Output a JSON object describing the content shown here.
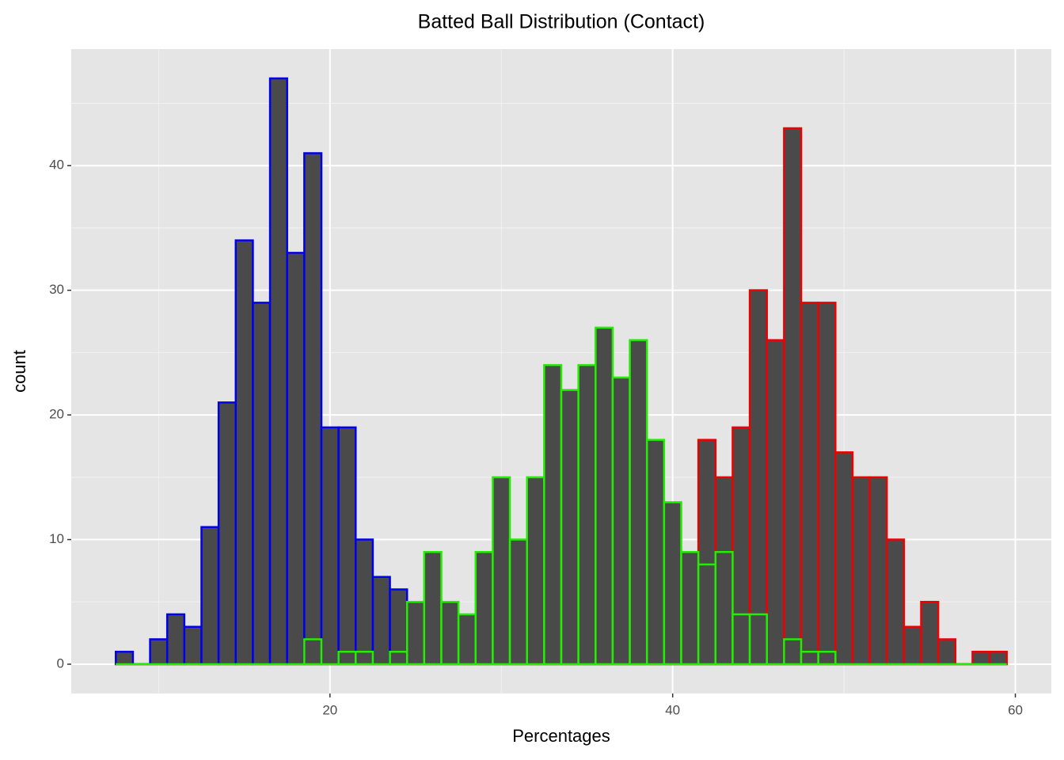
{
  "chart_data": {
    "type": "histogram",
    "title": "Batted Ball Distribution (Contact)",
    "x_label": "Percentages",
    "y_label": "count",
    "bins": [
      7.5,
      8.5,
      9.5,
      10.5,
      11.5,
      12.5,
      13.5,
      14.5,
      15.5,
      16.5,
      17.5,
      18.5,
      19.5,
      20.5,
      21.5,
      22.5,
      23.5,
      24.5,
      25.5,
      26.5,
      27.5,
      28.5,
      29.5,
      30.5,
      31.5,
      32.5,
      33.5,
      34.5,
      35.5,
      36.5,
      37.5,
      38.5,
      39.5,
      40.5,
      41.5,
      42.5,
      43.5,
      44.5,
      45.5,
      46.5,
      47.5,
      48.5,
      49.5,
      50.5,
      51.5,
      52.5,
      53.5,
      54.5,
      55.5,
      56.5,
      57.5,
      58.5,
      59.5
    ],
    "fill": "#4a4a4a",
    "series": [
      {
        "color": "#0000ee",
        "values": [
          1,
          0,
          2,
          4,
          3,
          11,
          21,
          34,
          29,
          47,
          33,
          41,
          19,
          19,
          10,
          7,
          6,
          0,
          0,
          0,
          0,
          0,
          0,
          0,
          0,
          0,
          0,
          0,
          0,
          0,
          0,
          0,
          0,
          0,
          0,
          0,
          0,
          0,
          0,
          0,
          0,
          0,
          0,
          0,
          0,
          0,
          0,
          0,
          0,
          0,
          0,
          0
        ]
      },
      {
        "color": "#ee0000",
        "values": [
          0,
          0,
          0,
          0,
          0,
          0,
          0,
          0,
          0,
          0,
          0,
          0,
          0,
          0,
          0,
          0,
          0,
          0,
          0,
          0,
          0,
          0,
          0,
          0,
          0,
          0,
          0,
          0,
          0,
          0,
          0,
          0,
          0,
          0,
          18,
          15,
          19,
          30,
          26,
          43,
          29,
          29,
          17,
          15,
          15,
          10,
          3,
          5,
          2,
          0,
          1,
          1
        ]
      },
      {
        "color": "#22ee00",
        "values": [
          0,
          0,
          0,
          0,
          0,
          0,
          0,
          0,
          0,
          0,
          0,
          2,
          0,
          1,
          1,
          0,
          1,
          5,
          9,
          5,
          4,
          9,
          15,
          10,
          15,
          24,
          22,
          24,
          27,
          23,
          26,
          18,
          13,
          9,
          8,
          9,
          4,
          4,
          0,
          2,
          1,
          1,
          0,
          0,
          0,
          0,
          0,
          0,
          0,
          0,
          0,
          0
        ]
      }
    ],
    "xlim": [
      4.9,
      62.1
    ],
    "ylim": [
      -2.35,
      49.35
    ],
    "xticks": [
      20,
      40,
      60
    ],
    "yticks": [
      0,
      10,
      20,
      30,
      40
    ],
    "grid": true
  }
}
